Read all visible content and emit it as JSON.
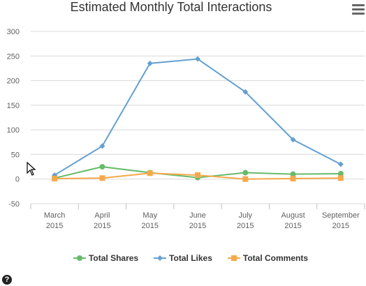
{
  "chart_data": {
    "type": "line",
    "title": "Estimated Monthly Total Interactions",
    "categories": [
      [
        "March",
        "2015"
      ],
      [
        "April",
        "2015"
      ],
      [
        "May",
        "2015"
      ],
      [
        "June",
        "2015"
      ],
      [
        "July",
        "2015"
      ],
      [
        "August",
        "2015"
      ],
      [
        "September",
        "2015"
      ]
    ],
    "ylim": [
      -50,
      300
    ],
    "yticks": [
      -50,
      0,
      50,
      100,
      150,
      200,
      250,
      300
    ],
    "grid": true,
    "legend_position": "bottom-center",
    "series": [
      {
        "name": "Total Shares",
        "color": "#66bb6a",
        "marker": "circle",
        "values": [
          2,
          25,
          13,
          3,
          13,
          10,
          11
        ]
      },
      {
        "name": "Total Likes",
        "color": "#64a0d2",
        "marker": "diamond",
        "values": [
          8,
          67,
          235,
          244,
          177,
          80,
          30
        ]
      },
      {
        "name": "Total Comments",
        "color": "#f5a94a",
        "marker": "square",
        "values": [
          1,
          2,
          12,
          8,
          0,
          1,
          2
        ]
      }
    ]
  },
  "icons": {
    "menu": "hamburger-menu-icon",
    "help": "question-mark-icon",
    "cursor": "mouse-pointer-icon"
  },
  "help_label": "?"
}
